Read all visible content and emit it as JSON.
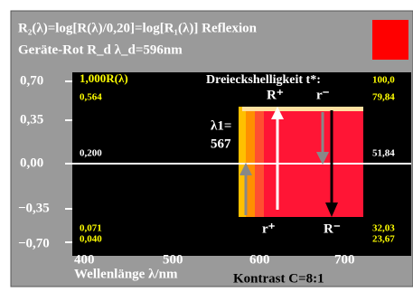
{
  "header": {
    "title": "R₂(λ)=log[R(λ)/0,20]=log[R₁(λ)] Reflexion",
    "subtitle": "Geräte-Rot R_d   λ_d=596nm"
  },
  "y_axis": {
    "ticks": [
      "0,70",
      "0,35",
      "0,00",
      "−0,35",
      "−0,70"
    ]
  },
  "x_axis": {
    "ticks": [
      "400",
      "500",
      "600",
      "700"
    ],
    "label": "Wellenlänge λ/nm"
  },
  "contrast": "Kontrast C=8:1",
  "left_labels": [
    "1,000R(λ)",
    "0,564",
    "0,200",
    "0,071",
    "0,040"
  ],
  "right_labels": {
    "title": "Dreieckshelligkeit t*:",
    "values": [
      "100,0",
      "79,84",
      "51,84",
      "32,03",
      "23,67"
    ]
  },
  "markers": {
    "top_left": "R⁺",
    "top_right": "r⁻",
    "bottom_left": "r⁺",
    "bottom_right": "R⁻"
  },
  "lambda": {
    "label": "λ1=",
    "value": "567"
  }
}
